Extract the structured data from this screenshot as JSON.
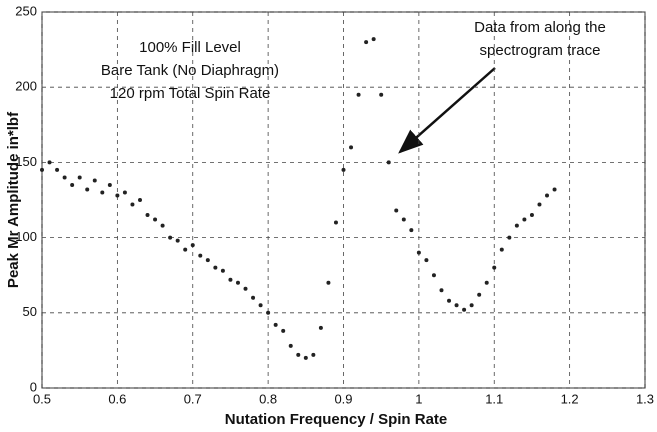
{
  "chart_data": {
    "type": "scatter",
    "annotations": [
      "100% Fill Level",
      "Bare Tank (No Diaphragm)",
      "120 rpm Total Spin Rate",
      "Data from along the",
      "spectrogram trace"
    ],
    "xlabel": "Nutation Frequency / Spin Rate",
    "ylabel": "Peak Mr Amplitude  in*lbf",
    "x": [
      0.5,
      0.51,
      0.52,
      0.53,
      0.54,
      0.55,
      0.56,
      0.57,
      0.58,
      0.59,
      0.6,
      0.61,
      0.62,
      0.63,
      0.64,
      0.65,
      0.66,
      0.67,
      0.68,
      0.69,
      0.7,
      0.71,
      0.72,
      0.73,
      0.74,
      0.75,
      0.76,
      0.77,
      0.78,
      0.79,
      0.8,
      0.81,
      0.82,
      0.83,
      0.84,
      0.85,
      0.86,
      0.87,
      0.88,
      0.89,
      0.9,
      0.91,
      0.92,
      0.93,
      0.94,
      0.95,
      0.96,
      0.97,
      0.98,
      0.99,
      1.0,
      1.01,
      1.02,
      1.03,
      1.04,
      1.05,
      1.06,
      1.07,
      1.08,
      1.09,
      1.1,
      1.11,
      1.12,
      1.13,
      1.14,
      1.15,
      1.16,
      1.17,
      1.18
    ],
    "values": [
      145,
      150,
      145,
      140,
      135,
      140,
      132,
      138,
      130,
      135,
      128,
      130,
      122,
      125,
      115,
      112,
      108,
      100,
      98,
      92,
      95,
      88,
      85,
      80,
      78,
      72,
      70,
      66,
      60,
      55,
      50,
      42,
      38,
      28,
      22,
      20,
      22,
      40,
      70,
      110,
      145,
      160,
      195,
      230,
      232,
      195,
      150,
      118,
      112,
      105,
      90,
      85,
      75,
      65,
      58,
      55,
      52,
      55,
      62,
      70,
      80,
      92,
      100,
      108,
      112,
      115,
      122,
      128,
      132
    ],
    "color": "#222222",
    "xlim": [
      0.5,
      1.3
    ],
    "xticks": [
      0.5,
      0.6,
      0.7,
      0.8,
      0.9,
      1,
      1.1,
      1.2,
      1.3
    ],
    "ylim": [
      0,
      250
    ],
    "yticks": [
      0,
      50,
      100,
      150,
      200,
      250
    ],
    "grid": true
  }
}
